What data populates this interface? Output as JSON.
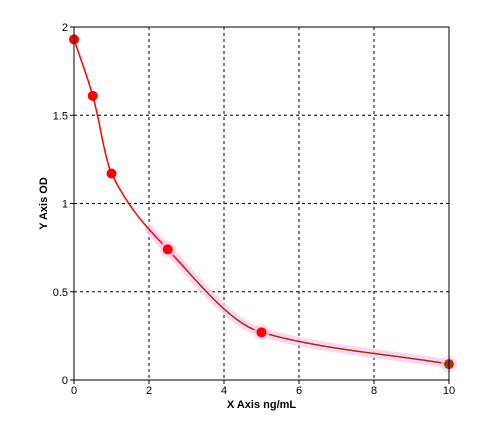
{
  "chart_data": {
    "type": "scatter",
    "title": "",
    "xlabel": "X Axis ng/mL",
    "ylabel": "Y Axis OD",
    "xlim": [
      0,
      10
    ],
    "ylim": [
      0,
      2
    ],
    "x_ticks": [
      0,
      2,
      4,
      6,
      8,
      10
    ],
    "x_tick_labels": [
      "0",
      "2",
      "4",
      "6",
      "8",
      "10"
    ],
    "y_ticks": [
      0,
      0.5,
      1,
      1.5,
      2
    ],
    "y_tick_labels": [
      "0",
      "0.5",
      "1",
      "1.5",
      "2"
    ],
    "grid": true,
    "legend": "none",
    "series": [
      {
        "x": [
          0,
          0.5,
          1,
          2.5,
          5,
          10
        ],
        "y": [
          1.93,
          1.61,
          1.17,
          0.74,
          0.27,
          0.09
        ],
        "fit": "curve"
      }
    ],
    "colors": {
      "curve": "#ff0000",
      "curve_tail": "#8b3a0a",
      "points": "#ff0000",
      "point_tail": "#9b3a12",
      "halo": "#ffc8f0",
      "grid": "#000000",
      "frame": "#000000"
    }
  }
}
